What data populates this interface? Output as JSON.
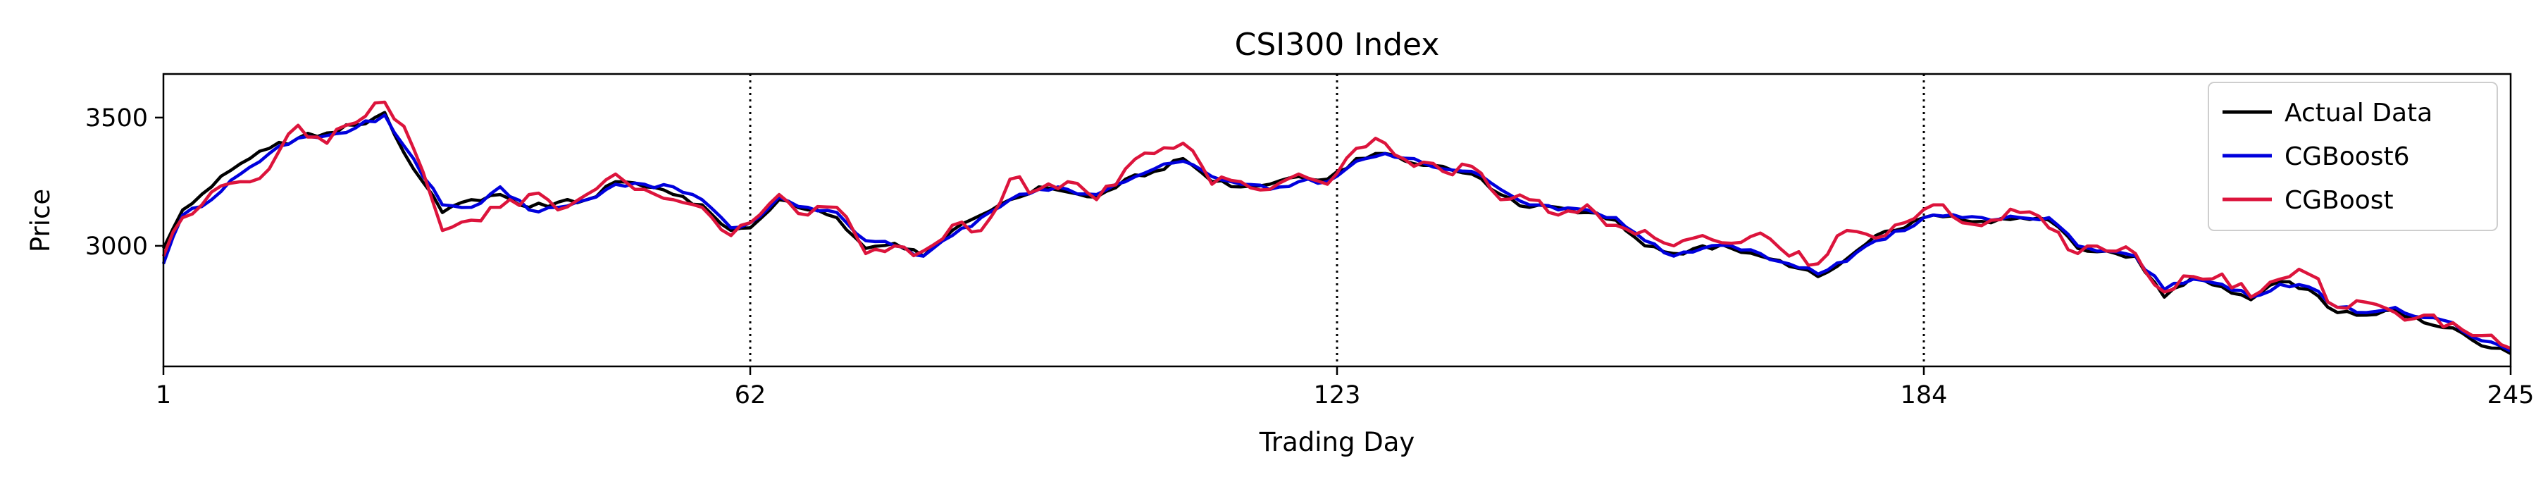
{
  "chart_data": {
    "type": "line",
    "title": "CSI300 Index",
    "xlabel": "Trading Day",
    "ylabel": "Price",
    "xlim": [
      1,
      245
    ],
    "ylim": [
      2530,
      3670
    ],
    "x_ticks": [
      1,
      62,
      123,
      184,
      245
    ],
    "y_ticks": [
      3000,
      3500
    ],
    "vlines": [
      62,
      123,
      184
    ],
    "legend_position": "top-right",
    "anchors": {
      "x": [
        1,
        3,
        6,
        9,
        12,
        15,
        18,
        21,
        24,
        27,
        30,
        33,
        36,
        39,
        42,
        45,
        48,
        51,
        54,
        57,
        60,
        62,
        65,
        68,
        71,
        74,
        77,
        80,
        83,
        86,
        89,
        92,
        95,
        98,
        101,
        104,
        107,
        110,
        113,
        116,
        119,
        122,
        125,
        128,
        131,
        134,
        137,
        140,
        143,
        146,
        149,
        152,
        155,
        158,
        161,
        164,
        167,
        170,
        173,
        176,
        179,
        182,
        185,
        188,
        191,
        194,
        197,
        200,
        203,
        206,
        209,
        212,
        215,
        218,
        221,
        224,
        227,
        230,
        233,
        236,
        239,
        242,
        245
      ],
      "actual": [
        2990,
        3140,
        3230,
        3320,
        3380,
        3420,
        3440,
        3470,
        3520,
        3300,
        3130,
        3180,
        3200,
        3150,
        3170,
        3180,
        3250,
        3230,
        3200,
        3160,
        3060,
        3070,
        3180,
        3140,
        3110,
        2990,
        3010,
        2960,
        3060,
        3120,
        3180,
        3230,
        3210,
        3190,
        3260,
        3290,
        3340,
        3250,
        3230,
        3240,
        3270,
        3260,
        3340,
        3360,
        3320,
        3310,
        3280,
        3200,
        3150,
        3150,
        3130,
        3100,
        3000,
        2970,
        3000,
        2990,
        2960,
        2920,
        2880,
        2950,
        3040,
        3070,
        3120,
        3100,
        3090,
        3110,
        3100,
        2990,
        2980,
        2960,
        2800,
        2880,
        2840,
        2790,
        2860,
        2830,
        2740,
        2730,
        2750,
        2700,
        2680,
        2610,
        2580
      ],
      "cgboost6": [
        2930,
        3120,
        3180,
        3280,
        3360,
        3420,
        3430,
        3460,
        3510,
        3340,
        3160,
        3150,
        3230,
        3140,
        3150,
        3180,
        3240,
        3240,
        3230,
        3180,
        3070,
        3090,
        3190,
        3150,
        3130,
        3020,
        3000,
        2960,
        3040,
        3110,
        3180,
        3220,
        3220,
        3200,
        3250,
        3300,
        3330,
        3270,
        3240,
        3220,
        3250,
        3250,
        3330,
        3360,
        3340,
        3300,
        3290,
        3220,
        3160,
        3140,
        3140,
        3110,
        3020,
        2960,
        2990,
        3000,
        2970,
        2930,
        2890,
        2940,
        3020,
        3060,
        3120,
        3110,
        3100,
        3110,
        3110,
        3000,
        2980,
        2960,
        2830,
        2870,
        2850,
        2800,
        2850,
        2840,
        2760,
        2740,
        2760,
        2720,
        2700,
        2630,
        2590
      ],
      "cgboost": [
        2960,
        3110,
        3210,
        3250,
        3300,
        3470,
        3400,
        3480,
        3560,
        3380,
        3060,
        3100,
        3150,
        3200,
        3140,
        3200,
        3280,
        3220,
        3180,
        3150,
        3040,
        3090,
        3200,
        3120,
        3150,
        2970,
        3000,
        2980,
        3080,
        3060,
        3260,
        3220,
        3250,
        3180,
        3300,
        3360,
        3400,
        3240,
        3250,
        3220,
        3280,
        3240,
        3380,
        3400,
        3310,
        3290,
        3310,
        3180,
        3180,
        3120,
        3160,
        3080,
        3060,
        3000,
        3040,
        3010,
        3050,
        2960,
        2930,
        3060,
        3030,
        3090,
        3160,
        3090,
        3100,
        3130,
        3070,
        2970,
        2980,
        2970,
        2820,
        2880,
        2890,
        2800,
        2870,
        2890,
        2760,
        2780,
        2740,
        2730,
        2700,
        2650,
        2600
      ]
    },
    "series": [
      {
        "name": "Actual Data",
        "color": "#000000"
      },
      {
        "name": "CGBoost6",
        "color": "#0000dd"
      },
      {
        "name": "CGBoost",
        "color": "#dc143c"
      }
    ]
  }
}
